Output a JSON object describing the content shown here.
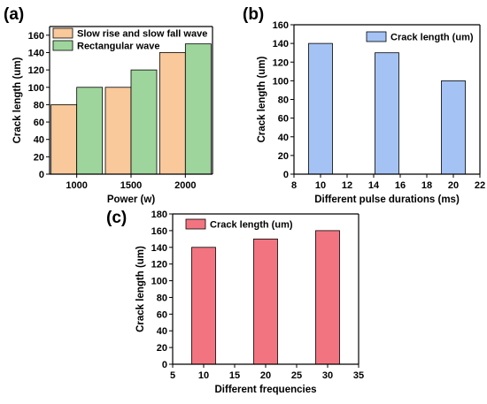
{
  "chart_data": [
    {
      "type": "bar",
      "panel_label": "(a)",
      "categories": [
        "1000",
        "1500",
        "2000"
      ],
      "series": [
        {
          "name": "Slow rise and slow fall wave",
          "values": [
            80,
            100,
            140
          ],
          "color": "#F9C89B"
        },
        {
          "name": "Rectangular wave",
          "values": [
            100,
            120,
            150
          ],
          "color": "#9ED59C"
        }
      ],
      "xlabel": "Power (w)",
      "ylabel": "Crack length (um)",
      "ylim": [
        0,
        170
      ],
      "yticks": [
        "0",
        "20",
        "40",
        "60",
        "80",
        "100",
        "120",
        "140",
        "160"
      ],
      "legend_position": "top-left",
      "grid": false
    },
    {
      "type": "bar",
      "panel_label": "(b)",
      "x": [
        10,
        15,
        20
      ],
      "series": [
        {
          "name": "Crack length (um)",
          "values": [
            140,
            130,
            100
          ],
          "color": "#A4C2F4"
        }
      ],
      "xlabel": "Different pulse durations (ms)",
      "ylabel": "Crack length (um)",
      "xlim": [
        8,
        22
      ],
      "xticks": [
        "8",
        "10",
        "12",
        "14",
        "16",
        "18",
        "20",
        "22"
      ],
      "ylim": [
        0,
        160
      ],
      "yticks": [
        "0",
        "20",
        "40",
        "60",
        "80",
        "100",
        "120",
        "140",
        "160"
      ],
      "legend_position": "top-right",
      "grid": false
    },
    {
      "type": "bar",
      "panel_label": "(c)",
      "x": [
        10,
        20,
        30
      ],
      "series": [
        {
          "name": "Crack length (um)",
          "values": [
            140,
            150,
            160
          ],
          "color": "#F27480"
        }
      ],
      "xlabel": "Different frequencies",
      "ylabel": "Crack length (um)",
      "xlim": [
        5,
        35
      ],
      "xticks": [
        "5",
        "10",
        "15",
        "20",
        "25",
        "30",
        "35"
      ],
      "ylim": [
        0,
        180
      ],
      "yticks": [
        "0",
        "20",
        "40",
        "60",
        "80",
        "100",
        "120",
        "140",
        "160",
        "180"
      ],
      "legend_position": "top-left",
      "grid": false
    }
  ]
}
